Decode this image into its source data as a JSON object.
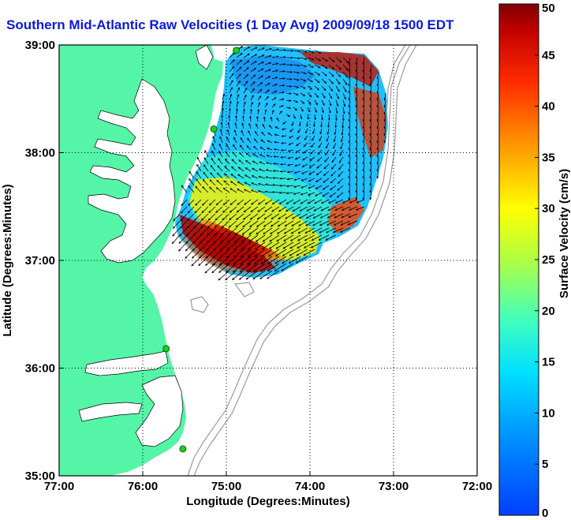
{
  "title": "Southern Mid-Atlantic Raw Velocities (1 Day Avg) 2009/09/18 1500 EDT",
  "axes": {
    "xlabel": "Longitude (Degrees:Minutes)",
    "ylabel": "Latitude (Degrees:Minutes)",
    "x_ticks": [
      "77:00",
      "76:00",
      "75:00",
      "74:00",
      "73:00",
      "72:00"
    ],
    "y_ticks": [
      "39:00",
      "38:00",
      "37:00",
      "36:00",
      "35:00"
    ],
    "x_range_deg_west": [
      77,
      72
    ],
    "y_range_deg_north": [
      35,
      39
    ],
    "grid": "dotted"
  },
  "colorbar": {
    "label": "Surface Velocity (cm/s)",
    "ticks": [
      "0",
      "5",
      "10",
      "15",
      "20",
      "25",
      "30",
      "35",
      "40",
      "45",
      "50"
    ],
    "range": [
      0,
      50
    ],
    "colormap": "jet"
  },
  "colors": {
    "land": "#55f5a8",
    "title": "#0b1ad8",
    "station": "#22cc22",
    "bathymetry": "#9a9a9a"
  },
  "stations": [
    {
      "lon": -74.88,
      "lat": 38.95
    },
    {
      "lon": -75.15,
      "lat": 38.22
    },
    {
      "lon": -75.72,
      "lat": 36.18
    },
    {
      "lon": -75.52,
      "lat": 35.25
    }
  ],
  "velocity_regions": [
    {
      "name": "northern-low-speed",
      "speed_cm_s": 8
    },
    {
      "name": "central-moderate",
      "speed_cm_s": 14
    },
    {
      "name": "southern-jet",
      "speed_cm_s": 45
    },
    {
      "name": "eastern-edge",
      "speed_cm_s": 38
    }
  ]
}
